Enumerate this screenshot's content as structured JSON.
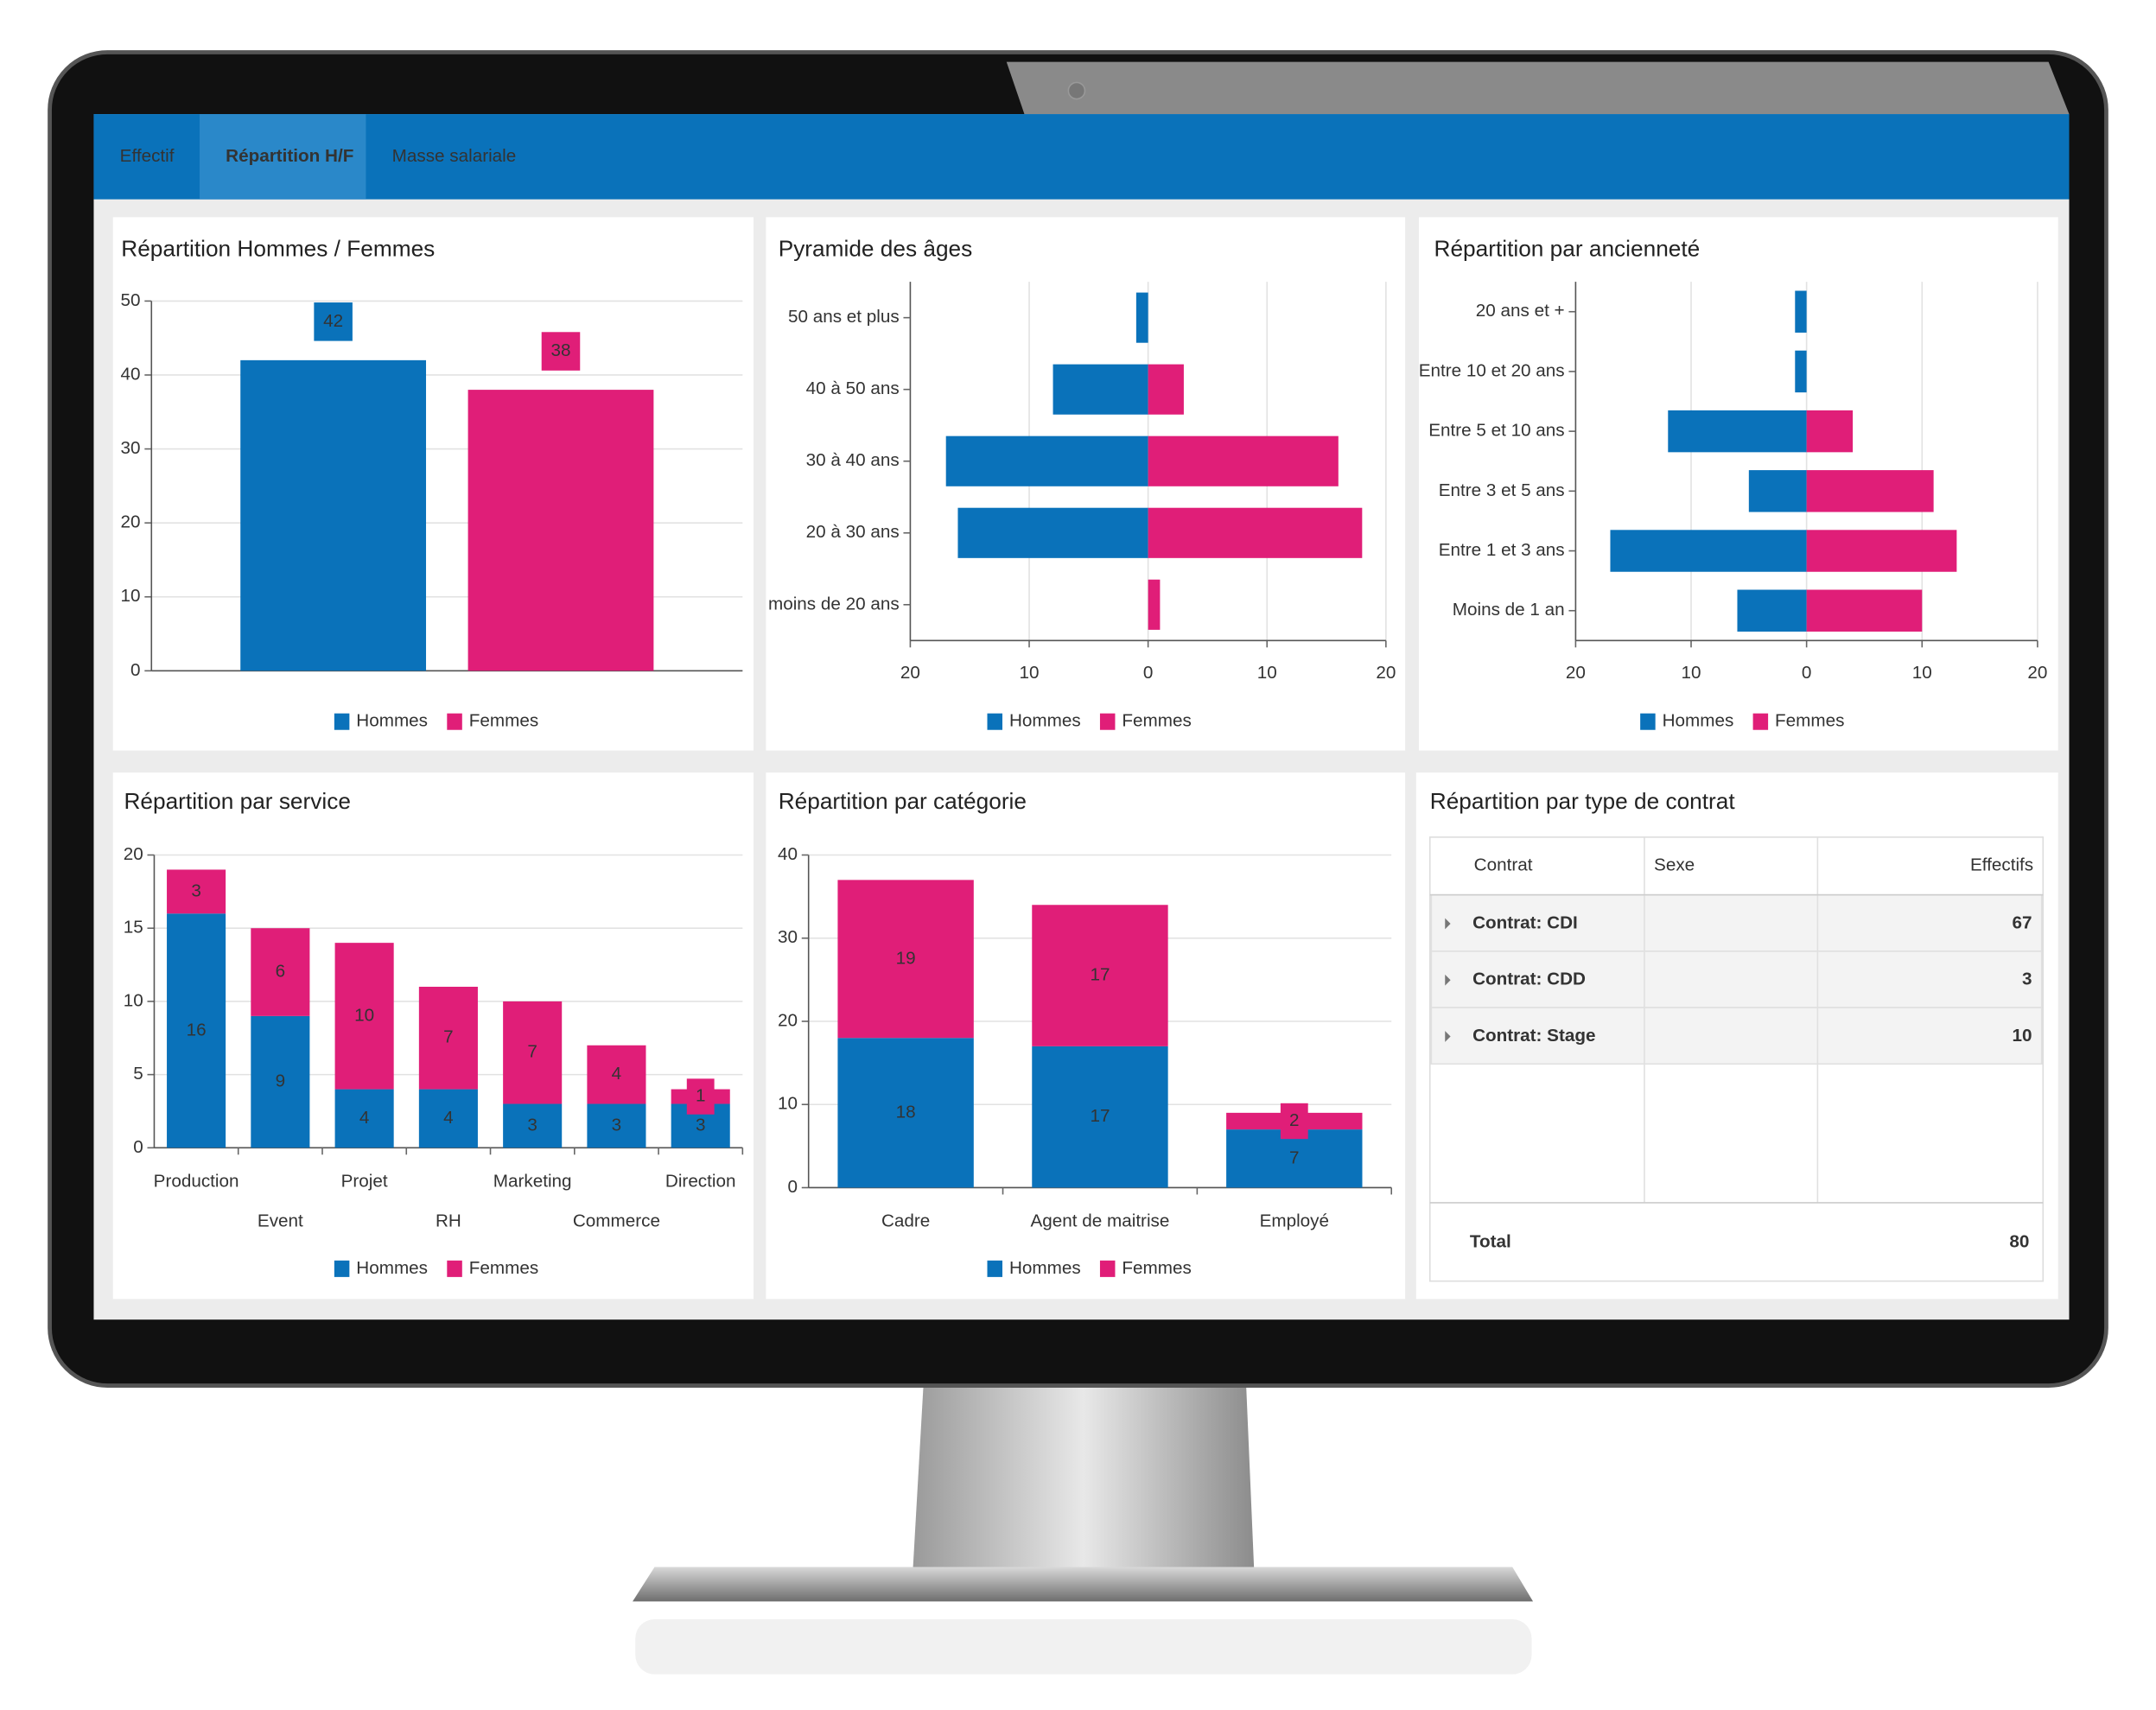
{
  "tabs": [
    "Effectif",
    "Répartition H/F",
    "Masse salariale"
  ],
  "chart_data": [
    {
      "type": "bar",
      "title": "Répartition Hommes / Femmes",
      "categories": [
        null
      ],
      "series": [
        {
          "name": "Hommes",
          "color": "#0a72ba",
          "values": [
            42
          ]
        },
        {
          "name": "Femmes",
          "color": "#e01e78",
          "values": [
            38
          ]
        }
      ],
      "ylim": [
        0,
        50
      ],
      "yticks": [
        0,
        10,
        20,
        30,
        40,
        50
      ],
      "grid": true
    },
    {
      "type": "pyramid",
      "title": "Pyramide des âges",
      "categories": [
        "50 ans et plus",
        "40 à 50 ans",
        "30 à 40 ans",
        "20 à 30 ans",
        "moins de 20 ans"
      ],
      "series": [
        {
          "name": "Hommes",
          "color": "#0a72ba",
          "values": [
            -1,
            -8,
            -17,
            -16,
            0
          ]
        },
        {
          "name": "Femmes",
          "color": "#e01e78",
          "values": [
            0,
            3,
            16,
            18,
            1
          ]
        }
      ],
      "xlim": [
        -20,
        20
      ],
      "xticks": [
        {
          "value": -20,
          "label": "20"
        },
        {
          "value": -10,
          "label": "10"
        },
        0,
        10,
        20
      ],
      "grid": true
    },
    {
      "type": "pyramid",
      "title": "Répartition par ancienneté",
      "categories": [
        "20 ans et +",
        "Entre 10 et 20 ans",
        "Entre 5 et 10 ans",
        "Entre 3 et 5 ans",
        "Entre 1 et 3 ans",
        "Moins de 1 an"
      ],
      "series": [
        {
          "name": "Hommes",
          "color": "#0a72ba",
          "values": [
            -1,
            -1,
            -12,
            -5,
            -17,
            -6
          ]
        },
        {
          "name": "Femmes",
          "color": "#e01e78",
          "values": [
            0,
            0,
            4,
            11,
            13,
            10
          ]
        }
      ],
      "xlim": [
        -20,
        20
      ],
      "xticks": [
        {
          "value": -20,
          "label": "20"
        },
        {
          "value": -10,
          "label": "10"
        },
        0,
        10,
        20
      ],
      "grid": true
    },
    {
      "type": "stacked",
      "title": "Répartition par service",
      "categories": [
        "Production",
        "Event",
        "Projet",
        "RH",
        "Marketing",
        "Commerce",
        "Direction"
      ],
      "series": [
        {
          "name": "Hommes",
          "color": "#0a72ba",
          "values": [
            16,
            9,
            4,
            4,
            3,
            3,
            3
          ]
        },
        {
          "name": "Femmes",
          "color": "#e01e78",
          "values": [
            3,
            6,
            10,
            7,
            7,
            4,
            1
          ]
        }
      ],
      "ylim": [
        0,
        20
      ],
      "yticks": [
        0,
        5,
        10,
        15,
        20
      ],
      "grid": true
    },
    {
      "type": "stacked",
      "title": "Répartition par catégorie",
      "categories": [
        "Cadre",
        "Agent de maitrise",
        "Employé"
      ],
      "series": [
        {
          "name": "Hommes",
          "color": "#0a72ba",
          "values": [
            18,
            17,
            7
          ]
        },
        {
          "name": "Femmes",
          "color": "#e01e78",
          "values": [
            19,
            17,
            2
          ]
        }
      ],
      "ylim": [
        0,
        40
      ],
      "yticks": [
        0,
        10,
        20,
        30,
        40
      ],
      "grid": true
    }
  ],
  "table": {
    "title": "Répartition par type de contrat",
    "columns": [
      "Contrat",
      "Sexe",
      "Effectifs"
    ],
    "rows": [
      [
        "Contrat: CDI",
        67
      ],
      [
        "Contrat: CDD",
        3
      ],
      [
        "Contrat: Stage",
        10
      ]
    ],
    "total": [
      "Total",
      80
    ]
  }
}
